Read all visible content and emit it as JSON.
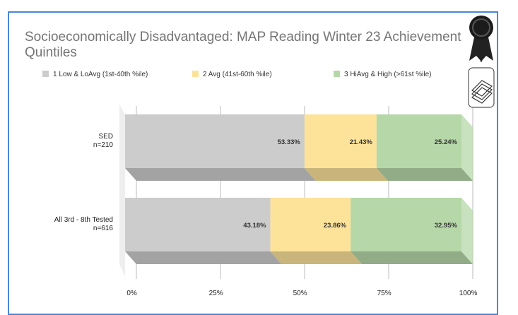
{
  "chart_data": {
    "type": "bar",
    "stacked": true,
    "orientation": "horizontal",
    "three_d": true,
    "title": "Socioeconomically Disadvantaged: MAP Reading Winter 23 Achievement Quintiles",
    "categories": [
      {
        "label": "SED",
        "sublabel": "n=210"
      },
      {
        "label": "All 3rd - 8th Tested",
        "sublabel": "n=616"
      }
    ],
    "series": [
      {
        "name": "1 Low & LoAvg (1st-40th %ile)",
        "color": "#cccccc",
        "shade": "#a3a3a3",
        "values": [
          53.33,
          43.18
        ],
        "labels": [
          "53.33%",
          "43.18%"
        ]
      },
      {
        "name": "2 Avg (41st-60th %ile)",
        "color": "#fde39a",
        "shade": "#c9b57b",
        "values": [
          21.43,
          23.86
        ],
        "labels": [
          "21.43%",
          "23.86%"
        ]
      },
      {
        "name": "3 HiAvg & High (>61st %ile)",
        "color": "#b6d7a8",
        "shade": "#91ac86",
        "values": [
          25.24,
          32.95
        ],
        "labels": [
          "25.24%",
          "32.95%"
        ]
      }
    ],
    "x_ticks": [
      "0%",
      "25%",
      "50%",
      "75%",
      "100%"
    ],
    "xlim": [
      0,
      100
    ],
    "legend_position": "top",
    "grid": true
  },
  "badges": {
    "award_icon": "award-ribbon-icon",
    "chart_type_icon": "3d-chart-icon"
  }
}
